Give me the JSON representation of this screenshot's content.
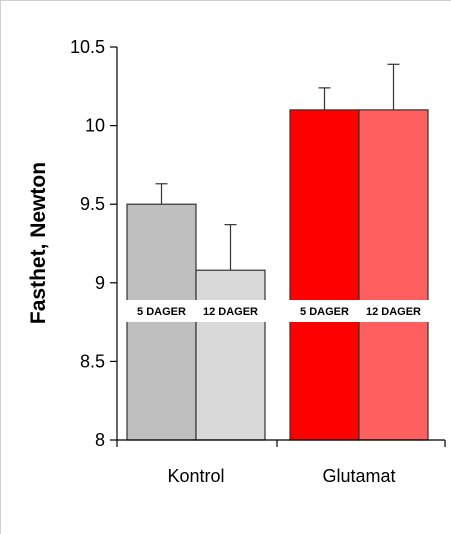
{
  "chart_data": {
    "type": "bar",
    "ylabel": "Fasthet, Newton",
    "ylim": [
      8,
      10.5
    ],
    "yticks": [
      "8",
      "8.5",
      "9",
      "9.5",
      "10",
      "10.5"
    ],
    "categories": [
      "Kontrol",
      "Glutamat"
    ],
    "series": [
      {
        "name": "5 DAGER",
        "values": [
          9.5,
          10.1
        ],
        "errors": [
          0.13,
          0.14
        ],
        "colors": [
          "#bfbfbf",
          "#ff0000"
        ]
      },
      {
        "name": "12 DAGER",
        "values": [
          9.08,
          10.1
        ],
        "errors": [
          0.29,
          0.29
        ],
        "colors": [
          "#d9d9d9",
          "#ff5f5f"
        ]
      }
    ],
    "bar_labels": [
      [
        "5 DAGER",
        "12 DAGER"
      ],
      [
        "5 DAGER",
        "12 DAGER"
      ]
    ]
  }
}
